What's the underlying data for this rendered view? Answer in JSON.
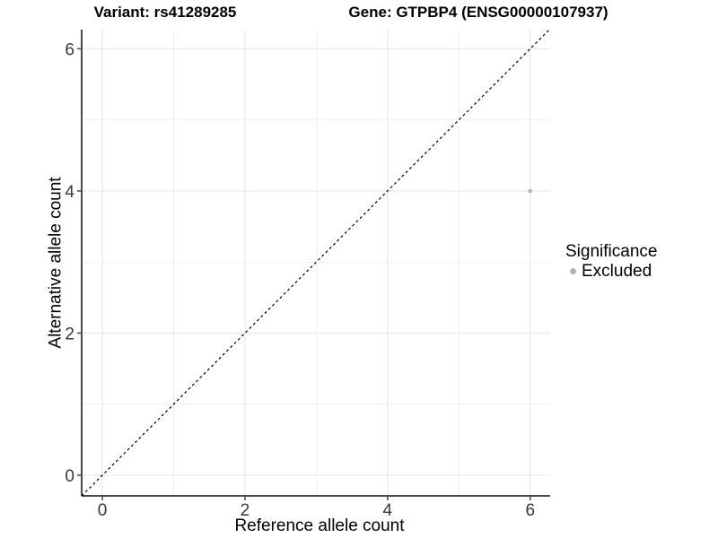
{
  "header": {
    "variant_title": "Variant: rs41289285",
    "gene_title": "Gene: GTPBP4 (ENSG00000107937)"
  },
  "chart_data": {
    "type": "scatter",
    "xlabel": "Reference allele count",
    "ylabel": "Alternative allele count",
    "xlim": [
      -0.29,
      6.28
    ],
    "ylim": [
      -0.29,
      6.27
    ],
    "x_ticks": [
      0,
      2,
      4,
      6
    ],
    "y_ticks": [
      0,
      2,
      4,
      6
    ],
    "gridline_values": [
      0,
      1,
      2,
      3,
      4,
      5,
      6
    ],
    "grid": true,
    "points": [
      {
        "x": 6,
        "y": 4,
        "series": "Excluded"
      }
    ],
    "reference_line": {
      "equation": "y = x",
      "style": "dashed",
      "color": "#000000"
    },
    "legend": {
      "title": "Significance",
      "position": "right",
      "items": [
        {
          "label": "Excluded",
          "color": "#b3b3b3",
          "marker": "circle"
        }
      ]
    },
    "colors": {
      "point": "#b3b3b3",
      "grid_major": "#e4e4e4",
      "grid_minor": "#efefef",
      "axis_line": "#4a4a4a",
      "tick_text": "#383838",
      "background": "#ffffff"
    }
  }
}
